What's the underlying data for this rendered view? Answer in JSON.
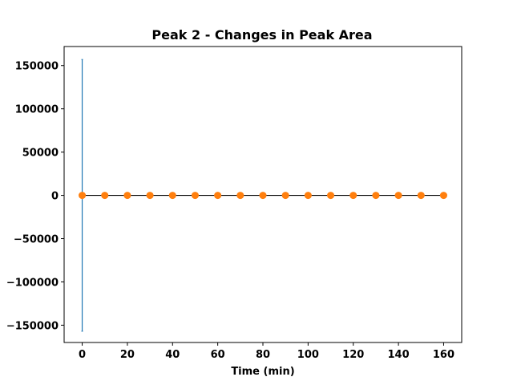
{
  "chart_data": {
    "type": "scatter",
    "title": "Peak 2 - Changes in Peak Area",
    "xlabel": "Time (min)",
    "ylabel": "",
    "xlim": [
      -8,
      168
    ],
    "ylim": [
      -170000,
      172000
    ],
    "xticks": [
      0,
      20,
      40,
      60,
      80,
      100,
      120,
      140,
      160
    ],
    "xtick_labels": [
      "0",
      "20",
      "40",
      "60",
      "80",
      "100",
      "120",
      "140",
      "160"
    ],
    "yticks": [
      150000,
      100000,
      50000,
      0,
      -50000,
      -100000,
      -150000
    ],
    "ytick_labels": [
      "150000",
      "100000",
      "50000",
      "0",
      "−50000",
      "−100000",
      "−150000"
    ],
    "grid": false,
    "series": [
      {
        "kind": "points_with_line",
        "x": [
          0,
          10,
          20,
          30,
          40,
          50,
          60,
          70,
          80,
          90,
          100,
          110,
          120,
          130,
          140,
          150,
          160
        ],
        "y": [
          0,
          0,
          0,
          0,
          0,
          0,
          0,
          0,
          0,
          0,
          0,
          0,
          0,
          0,
          0,
          0,
          0
        ],
        "marker_color": "#ff7f0e",
        "line_color": "#000000"
      },
      {
        "kind": "vertical_errorbar",
        "x": 0,
        "y_low": -157000,
        "y_high": 157000,
        "color": "#1f77b4"
      }
    ]
  }
}
